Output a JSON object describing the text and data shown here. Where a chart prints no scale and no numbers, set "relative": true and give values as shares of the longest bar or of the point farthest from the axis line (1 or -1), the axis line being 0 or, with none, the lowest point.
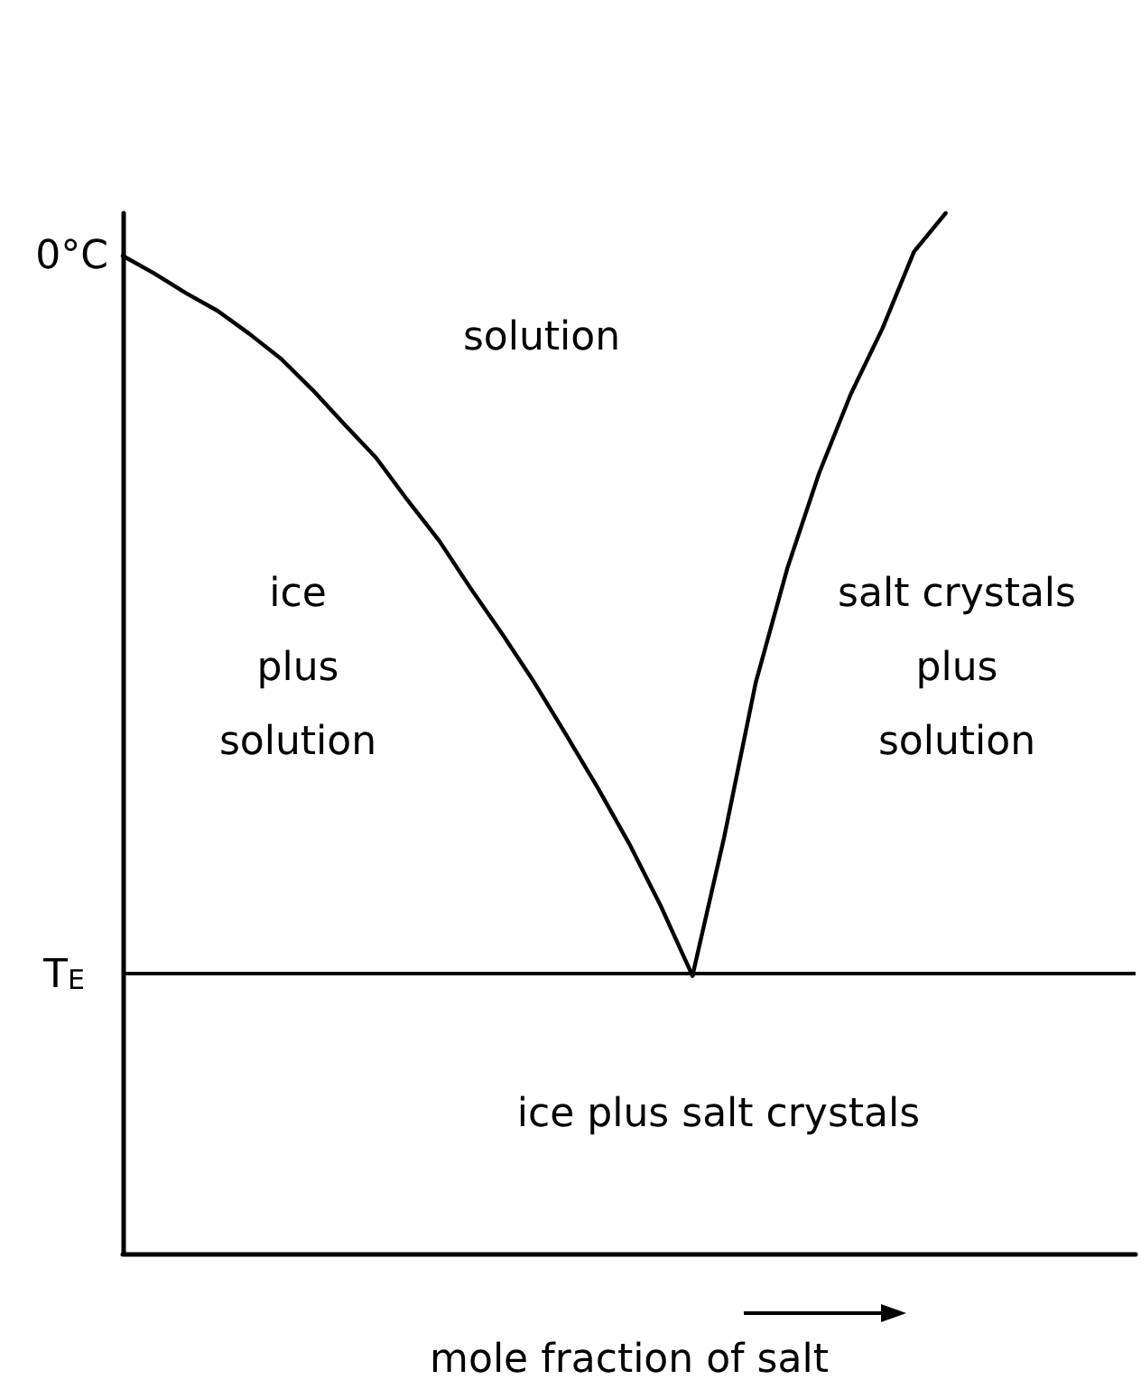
{
  "chart_data": {
    "type": "line",
    "relative": true,
    "xlabel": "mole fraction of salt",
    "marker": "none",
    "line_style": "solid",
    "categories": [
      null,
      null,
      null,
      null,
      null,
      null,
      null,
      null,
      null,
      null,
      null,
      null,
      null,
      null,
      null,
      null,
      null,
      null,
      null,
      null,
      null,
      null,
      null,
      null,
      null,
      null,
      null,
      null,
      null,
      null,
      null,
      null,
      null
    ],
    "series": [
      {
        "color": "#000000",
        "values": [
          0.959,
          0.942,
          0.923,
          0.906,
          0.884,
          0.86,
          0.83,
          0.797,
          0.765,
          0.724,
          0.685,
          0.639,
          0.595,
          0.549,
          0.499,
          0.448,
          0.394,
          0.334,
          0.267,
          null,
          null,
          null,
          null,
          null,
          null,
          null,
          null,
          null,
          null,
          null,
          null,
          null,
          null
        ]
      },
      {
        "color": "#000000",
        "values": [
          null,
          null,
          null,
          null,
          null,
          null,
          null,
          null,
          null,
          null,
          null,
          null,
          null,
          null,
          null,
          null,
          null,
          null,
          0.267,
          0.4,
          0.549,
          0.659,
          0.75,
          0.826,
          0.889,
          0.963,
          1.0,
          null,
          null,
          null,
          null,
          null,
          null
        ]
      }
    ],
    "ref_lines": [
      {
        "axis": "y",
        "value": 0.267,
        "label": "T$_{E}$",
        "color": "#000000"
      }
    ],
    "annotations": [
      "0°C",
      "solution",
      "ice\nplus\nsolution",
      "salt crystals\nplus\nsolution",
      "ice plus salt crystals"
    ]
  }
}
